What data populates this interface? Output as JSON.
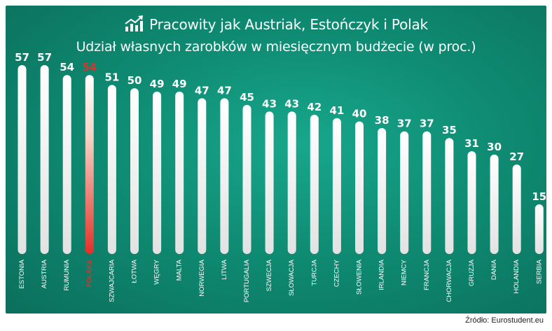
{
  "header": {
    "title": "Pracowity jak Austriak, Estończyk  i Polak",
    "subtitle": "Udział własnych zarobków w miesięcznym budżecie (w proc.)"
  },
  "source": "Źródło: Eurostudent.eu",
  "icons": {
    "title_icon": "growth-chart-icon"
  },
  "colors": {
    "background": "#12967c",
    "bar": "#ffffff",
    "highlight": "#e0312a",
    "label": "#ffffff"
  },
  "chart_data": {
    "type": "bar",
    "categories": [
      "ESTONIA",
      "AUSTRIA",
      "RUMUNIA",
      "POLSKA",
      "SZWAJCARIA",
      "ŁOTWA",
      "WĘGRY",
      "MALTA",
      "NORWEGIA",
      "LITWA",
      "PORTUGALIA",
      "SZWECJA",
      "SŁOWACJA",
      "TURCJA",
      "CZECHY",
      "SŁOWENIA",
      "IRLANDIA",
      "NIEMCY",
      "FRANCJA",
      "CHORWACJA",
      "GRUZJA",
      "DANIA",
      "HOLANDIA",
      "SERBIA"
    ],
    "values": [
      57,
      57,
      54,
      54,
      51,
      50,
      49,
      49,
      47,
      47,
      45,
      43,
      43,
      42,
      41,
      40,
      38,
      37,
      37,
      35,
      31,
      30,
      27,
      15
    ],
    "highlight": "POLSKA",
    "ylim": [
      0,
      57
    ],
    "grid": false,
    "legend": "none"
  }
}
